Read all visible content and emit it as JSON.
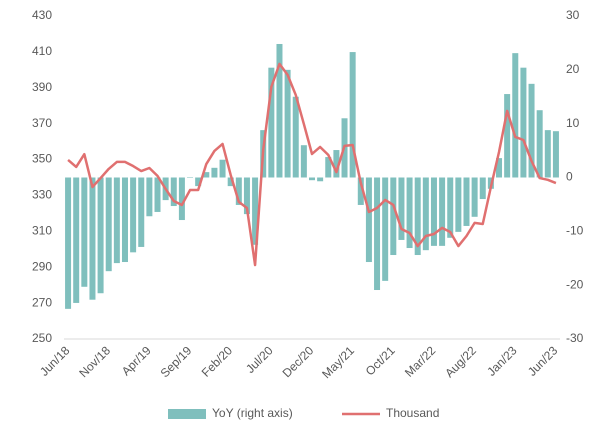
{
  "chart_data": {
    "type": "bar_line",
    "categories": [
      "Jun/18",
      null,
      null,
      null,
      null,
      "Nov/18",
      null,
      null,
      null,
      null,
      "Apr/19",
      null,
      null,
      null,
      null,
      "Sep/19",
      null,
      null,
      null,
      null,
      "Feb/20",
      null,
      null,
      null,
      null,
      "Jul/20",
      null,
      null,
      null,
      null,
      "Dec/20",
      null,
      null,
      null,
      null,
      "May/21",
      null,
      null,
      null,
      null,
      "Oct/21",
      null,
      null,
      null,
      null,
      "Mar/22",
      null,
      null,
      null,
      null,
      "Aug/22",
      null,
      null,
      null,
      null,
      "Jan/23",
      null,
      null,
      null,
      null,
      "Jun/23"
    ],
    "series": [
      {
        "name": "YoY (right axis)",
        "type": "bar",
        "axis": "y2",
        "color": "#7fbfbd",
        "values": [
          -24.4,
          -23.3,
          -20.3,
          -22.7,
          -21.5,
          -17.4,
          -15.9,
          -15.7,
          -13.9,
          -12.9,
          -7.2,
          -6.4,
          -4.2,
          -5.3,
          -7.9,
          0,
          -1.6,
          1,
          1.8,
          3.3,
          -1.6,
          -5.1,
          -6.8,
          -12.5,
          8.8,
          20.4,
          24.8,
          20,
          15,
          6,
          -0.5,
          -0.7,
          3.8,
          5.1,
          11,
          23.3,
          -5.1,
          -15.7,
          -20.9,
          -19.2,
          -14.4,
          -11.6,
          -13.1,
          -14.4,
          -13.5,
          -12.7,
          -12.7,
          -11.2,
          -10.1,
          -9,
          -7.3,
          -4,
          -2.1,
          3.6,
          15.5,
          23.1,
          20.4,
          17.4,
          12.5,
          8.8,
          8.6
        ]
      },
      {
        "name": "Thousand",
        "type": "line",
        "axis": "y",
        "color": "#e07070",
        "values": [
          349.8,
          345.9,
          353,
          334.7,
          339.7,
          344.8,
          348.7,
          348.7,
          346.4,
          343.6,
          345.3,
          340.9,
          333.6,
          326.9,
          324.7,
          333,
          333,
          347.5,
          354.8,
          358.7,
          341.4,
          326.4,
          323,
          291.2,
          355.4,
          390.5,
          403.3,
          397.2,
          386,
          369.8,
          353.1,
          357,
          352.6,
          343,
          357.6,
          358.1,
          337,
          320.8,
          323,
          327.5,
          324.7,
          311.3,
          309.1,
          301.8,
          307.4,
          308.5,
          311.9,
          309.6,
          301.8,
          307.4,
          314.7,
          314.1,
          334.7,
          354.2,
          377.1,
          362.6,
          360.9,
          349.2,
          339.7,
          338.7,
          336.9
        ]
      }
    ],
    "ylim": [
      250,
      430
    ],
    "yticks": [
      250,
      270,
      290,
      310,
      330,
      350,
      370,
      390,
      410,
      430
    ],
    "y2lim": [
      -30,
      30
    ],
    "y2ticks": [
      -30,
      -20,
      -10,
      0,
      10,
      20,
      30
    ],
    "grid": false,
    "legend": "bottom"
  }
}
